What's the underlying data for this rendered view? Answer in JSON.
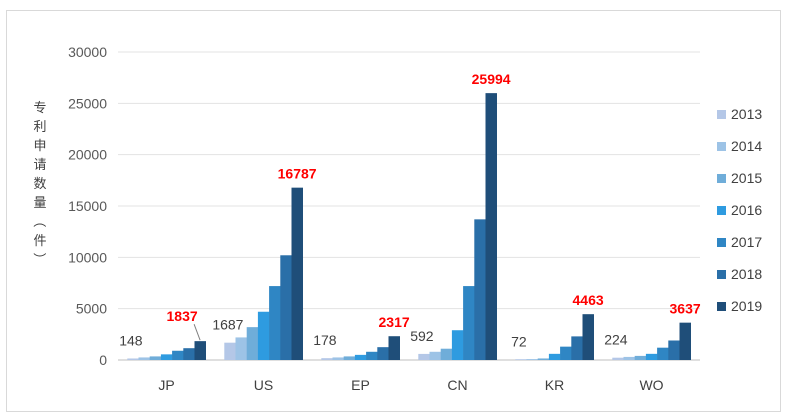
{
  "chart_data": {
    "type": "bar",
    "title": "",
    "xlabel": "",
    "ylabel": "专利申请数量（件）",
    "ylim": [
      0,
      30000
    ],
    "yticks": [
      0,
      5000,
      10000,
      15000,
      20000,
      25000,
      30000
    ],
    "grid": "horizontal",
    "legend": "right",
    "categories": [
      "JP",
      "US",
      "EP",
      "CN",
      "KR",
      "WO"
    ],
    "series": [
      {
        "name": "2013",
        "color": "#b4c7e7",
        "values": [
          148,
          1687,
          178,
          592,
          72,
          224
        ]
      },
      {
        "name": "2014",
        "color": "#9dc3e6",
        "values": [
          250,
          2200,
          250,
          800,
          90,
          300
        ]
      },
      {
        "name": "2015",
        "color": "#6fadd9",
        "values": [
          350,
          3200,
          350,
          1100,
          150,
          400
        ]
      },
      {
        "name": "2016",
        "color": "#2e9be0",
        "values": [
          550,
          4700,
          500,
          2900,
          600,
          600
        ]
      },
      {
        "name": "2017",
        "color": "#2f86c4",
        "values": [
          900,
          7200,
          800,
          7200,
          1300,
          1200
        ]
      },
      {
        "name": "2018",
        "color": "#2a6fa8",
        "values": [
          1150,
          10200,
          1250,
          13700,
          2300,
          1900
        ]
      },
      {
        "name": "2019",
        "color": "#1f4e79",
        "values": [
          1837,
          16787,
          2317,
          25994,
          4463,
          3637
        ]
      }
    ],
    "data_labels": {
      "first": [
        "148",
        "1687",
        "178",
        "592",
        "72",
        "224"
      ],
      "last": [
        "1837",
        "16787",
        "2317",
        "25994",
        "4463",
        "3637"
      ]
    }
  }
}
